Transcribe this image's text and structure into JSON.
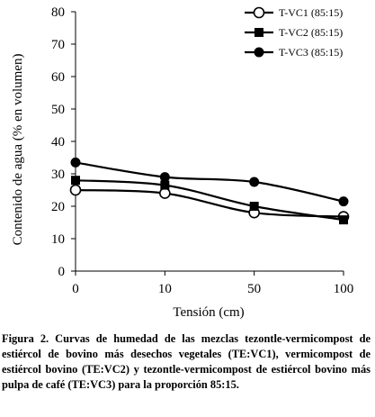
{
  "chart_data": {
    "type": "line",
    "x": [
      "0",
      "10",
      "50",
      "100"
    ],
    "xlabel": "Tensión (cm)",
    "ylabel": "Contenido de agua (% en volumen)",
    "ylim": [
      0,
      80
    ],
    "yticks": [
      "0",
      "10",
      "20",
      "30",
      "40",
      "50",
      "60",
      "70",
      "80"
    ],
    "grid": false,
    "legend_position": "top-right",
    "series": [
      {
        "name": "T-VC1 (85:15)",
        "marker": "open-circle",
        "values": [
          25.0,
          24.0,
          18.0,
          16.8
        ]
      },
      {
        "name": "T-VC2 (85:15)",
        "marker": "filled-square",
        "values": [
          28.0,
          26.5,
          20.0,
          15.8
        ]
      },
      {
        "name": "T-VC3 (85:15)",
        "marker": "filled-circle",
        "values": [
          33.5,
          29.0,
          27.5,
          21.5
        ]
      }
    ]
  },
  "caption": {
    "text": "Figura 2. Curvas de humedad de las mezclas tezontle-vermicompost de estiércol de bovino más desechos vegetales (TE:VC1), vermicompost de estiércol bovino (TE:VC2) y tezontle-vermicompost de estiércol bovino más pulpa de café (TE:VC3) para la proporción 85:15."
  }
}
